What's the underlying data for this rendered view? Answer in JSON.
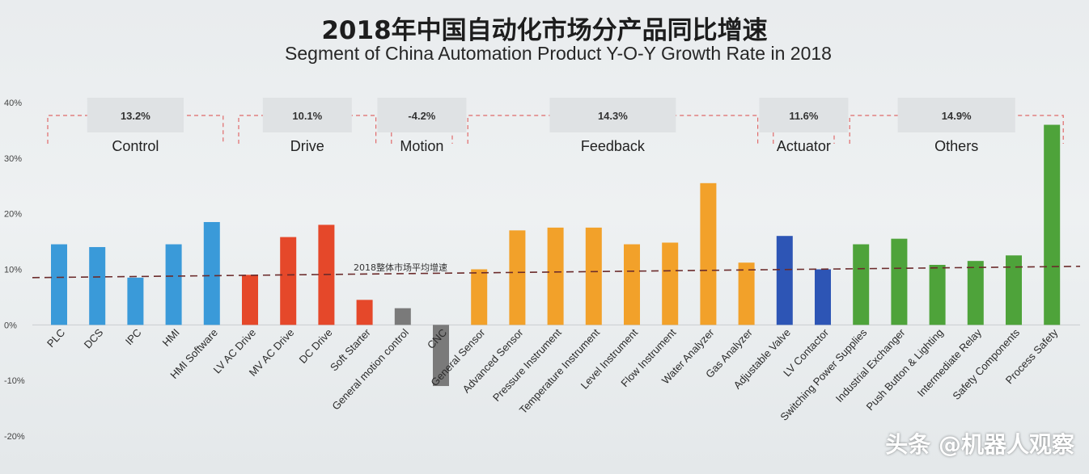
{
  "chart_data": {
    "type": "bar",
    "title": "2018年中国自动化市场分产品同比增速",
    "subtitle": "Segment of China Automation Product Y-O-Y Growth Rate in 2018",
    "ylim": [
      -20,
      40
    ],
    "yticks": [
      "40%",
      "30%",
      "20%",
      "10%",
      "0%",
      "-10%",
      "-20%"
    ],
    "yticks_values": [
      40,
      30,
      20,
      10,
      0,
      -10,
      -20
    ],
    "average_line": {
      "label": "2018整体市场平均增速",
      "value": 8.5
    },
    "categories": [
      "PLC",
      "DCS",
      "IPC",
      "HMI",
      "HMI Software",
      "LV AC Drive",
      "MV AC Drive",
      "DC Drive",
      "Soft Starter",
      "General motion control",
      "CNC",
      "General Sensor",
      "Advanced Sensor",
      "Pressure Instrument",
      "Temperature Instrument",
      "Level Instrument",
      "Flow Instrument",
      "Water Analyzer",
      "Gas Analyzer",
      "Adjustable Valve",
      "LV Contactor",
      "Switching Power Supplies",
      "Industrial Exchanger",
      "Push Button & Lighting",
      "Intermediate Relay",
      "Safety Components",
      "Process Safety"
    ],
    "values": [
      14.5,
      14.0,
      8.5,
      14.5,
      18.5,
      9.0,
      15.8,
      18.0,
      4.5,
      3.0,
      -11.0,
      10.0,
      17.0,
      17.5,
      17.5,
      14.5,
      14.8,
      25.5,
      11.2,
      16.0,
      10.0,
      14.5,
      15.5,
      10.8,
      11.5,
      12.5,
      36.0
    ],
    "colors": [
      "#3a9ad9",
      "#3a9ad9",
      "#3a9ad9",
      "#3a9ad9",
      "#3a9ad9",
      "#e5482a",
      "#e5482a",
      "#e5482a",
      "#e5482a",
      "#7a7a7a",
      "#7a7a7a",
      "#f2a12a",
      "#f2a12a",
      "#f2a12a",
      "#f2a12a",
      "#f2a12a",
      "#f2a12a",
      "#f2a12a",
      "#f2a12a",
      "#2d55b5",
      "#2d55b5",
      "#4ea33a",
      "#4ea33a",
      "#4ea33a",
      "#4ea33a",
      "#4ea33a",
      "#4ea33a"
    ],
    "groups": [
      {
        "name": "Control",
        "value": "13.2%",
        "start": 0,
        "end": 4
      },
      {
        "name": "Drive",
        "value": "10.1%",
        "start": 5,
        "end": 8
      },
      {
        "name": "Motion",
        "value": "-4.2%",
        "start": 9,
        "end": 10
      },
      {
        "name": "Feedback",
        "value": "14.3%",
        "start": 11,
        "end": 18
      },
      {
        "name": "Actuator",
        "value": "11.6%",
        "start": 19,
        "end": 20
      },
      {
        "name": "Others",
        "value": "14.9%",
        "start": 21,
        "end": 26
      }
    ],
    "grid": false
  },
  "watermark": "头条 @机器人观察"
}
